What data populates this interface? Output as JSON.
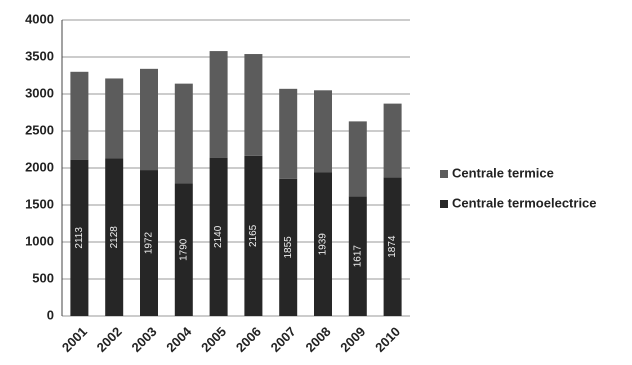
{
  "chart_data": {
    "type": "stacked_bar",
    "categories": [
      "2001",
      "2002",
      "2003",
      "2004",
      "2005",
      "2006",
      "2007",
      "2008",
      "2009",
      "2010"
    ],
    "series": [
      {
        "name": "Centrale termice",
        "color": "#5c5c5c",
        "values": [
          1187,
          1082,
          1368,
          1350,
          1440,
          1375,
          1215,
          1111,
          1013,
          996
        ]
      },
      {
        "name": "Centrale termoelectrice",
        "color": "#262626",
        "values": [
          2113,
          2128,
          1972,
          1790,
          2140,
          2165,
          1855,
          1939,
          1617,
          1874
        ]
      }
    ],
    "ylim": [
      0,
      4000
    ],
    "yticks": [
      0,
      500,
      1000,
      1500,
      2000,
      2500,
      3000,
      3500,
      4000
    ],
    "grid": true,
    "legend": "right"
  }
}
